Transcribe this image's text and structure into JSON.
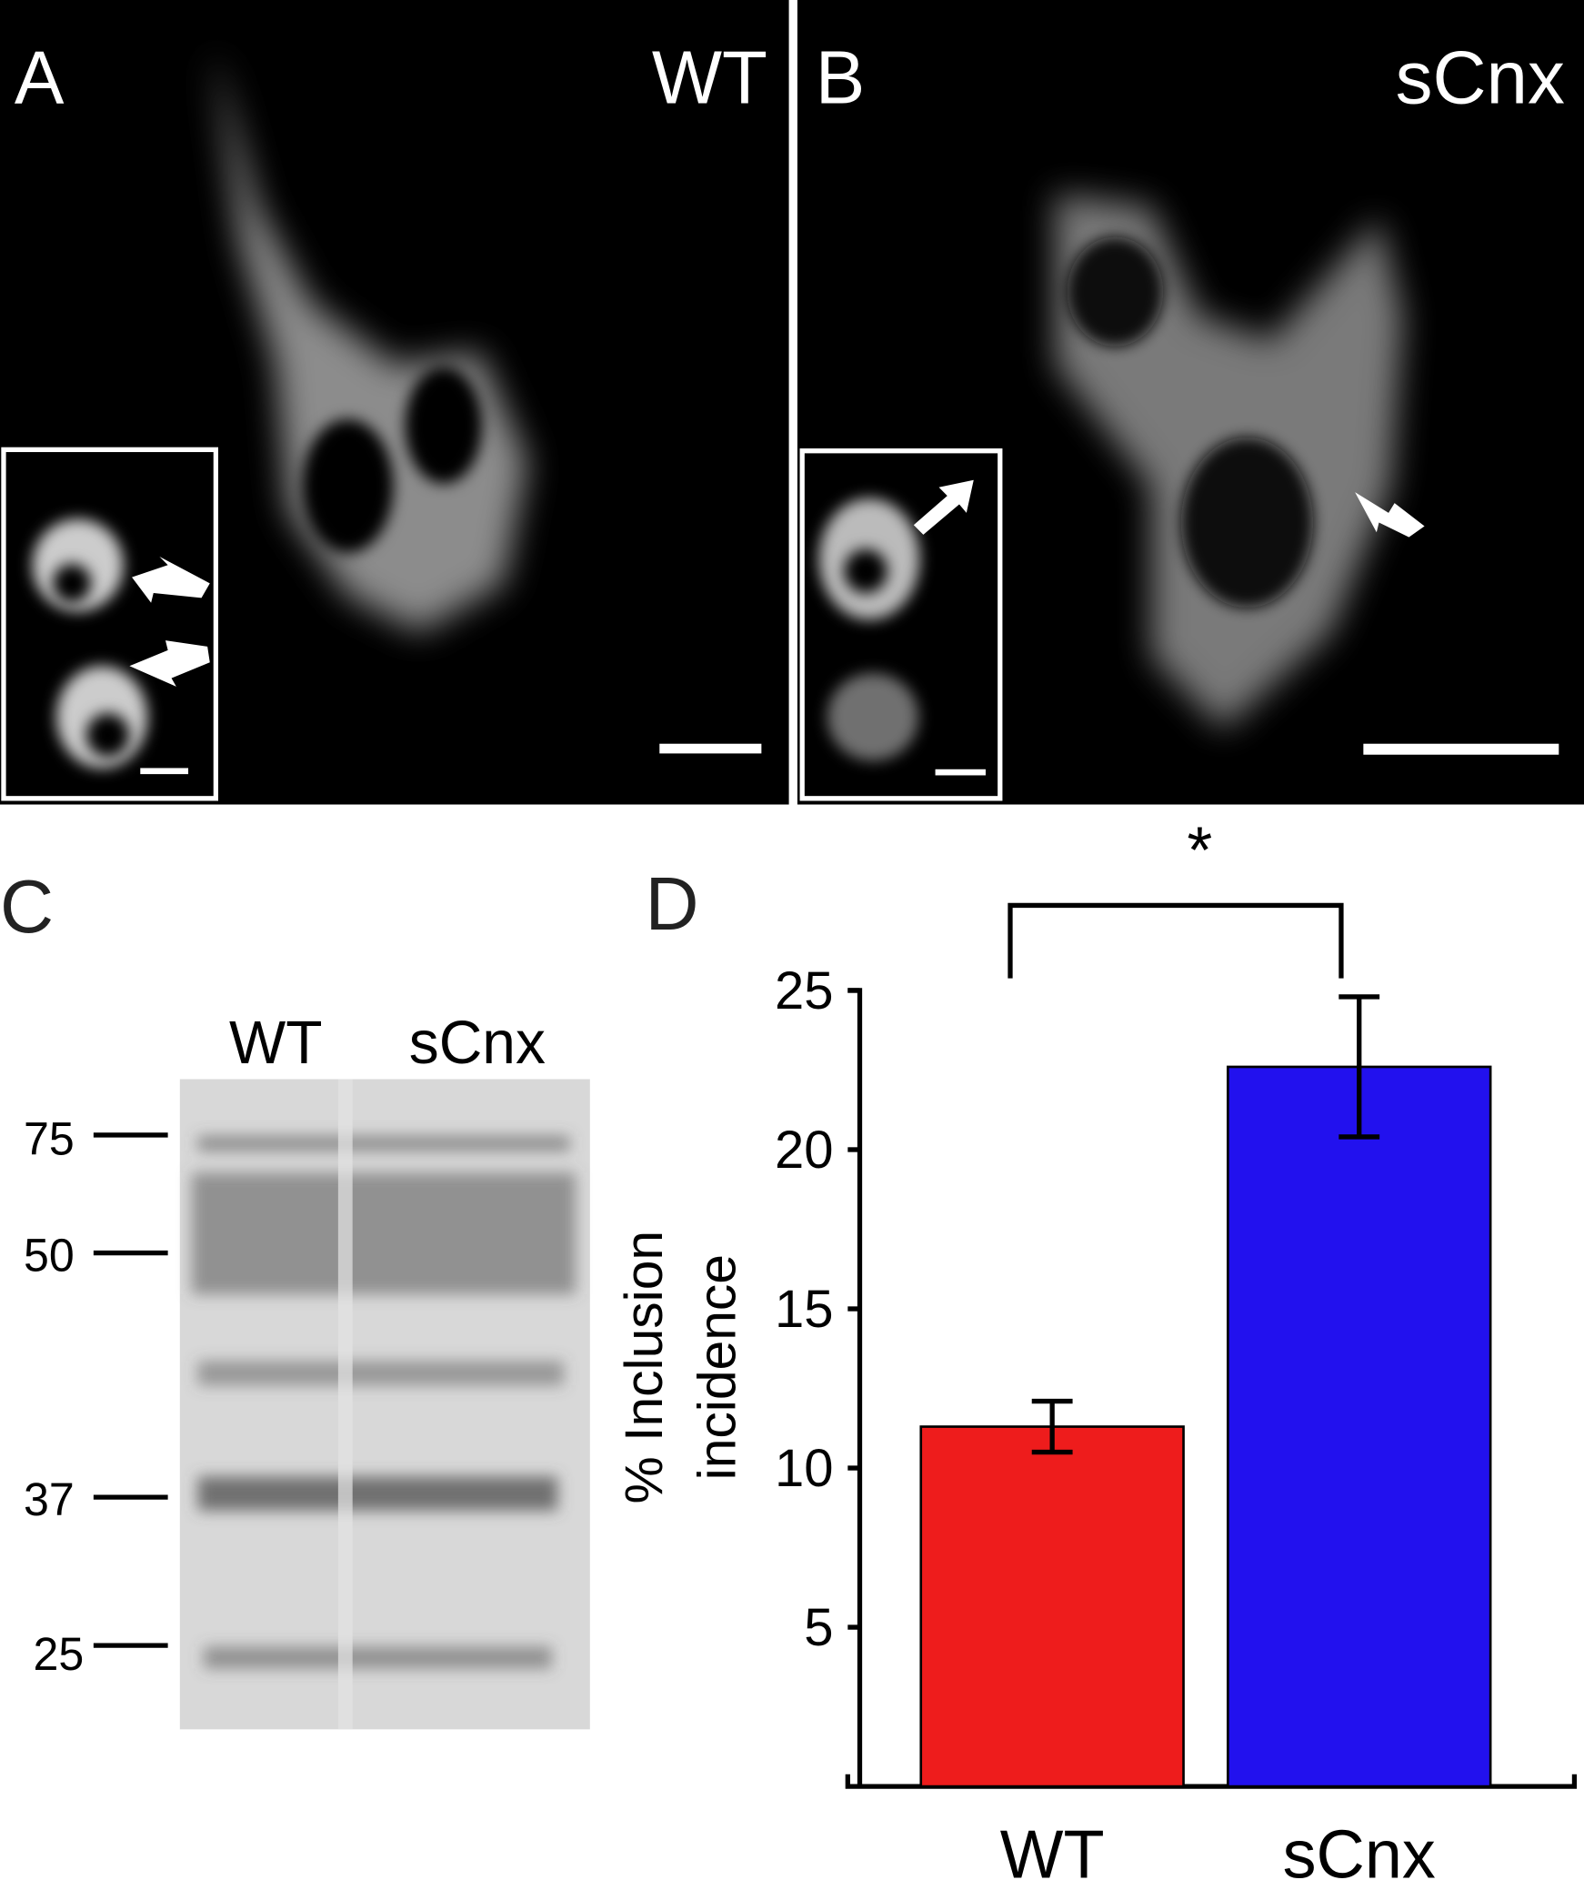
{
  "figure": {
    "panels": {
      "a": {
        "label": "A",
        "title": "WT"
      },
      "b": {
        "label": "B",
        "title": "sCnx"
      },
      "c": {
        "label": "C",
        "lanes": [
          "WT",
          "sCnx"
        ],
        "markers": [
          "75",
          "50",
          "37",
          "25"
        ]
      },
      "d": {
        "label": "D"
      }
    }
  },
  "chart_data": {
    "type": "bar",
    "categories": [
      "WT",
      "sCnx"
    ],
    "values": [
      11.3,
      22.6
    ],
    "errors": [
      0.8,
      2.2
    ],
    "colors": [
      "#ee1c1c",
      "#2211ee"
    ],
    "ylabel_lines": [
      "% Inclusion",
      "incidence"
    ],
    "annotation": "*",
    "ylim": [
      0,
      25
    ],
    "yticks": [
      5,
      10,
      15,
      20,
      25
    ]
  }
}
